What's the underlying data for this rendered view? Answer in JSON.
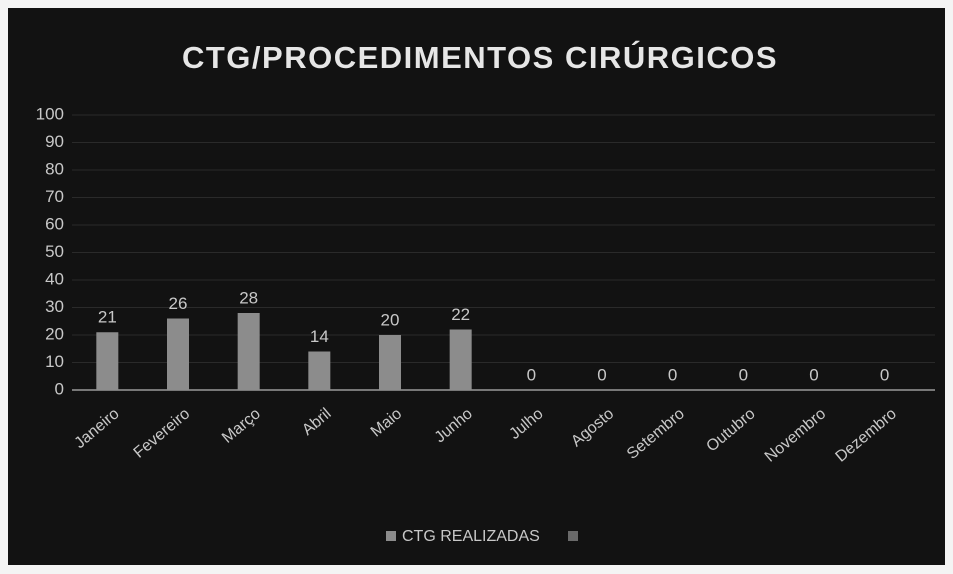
{
  "chart_data": {
    "type": "bar",
    "title": "CTG/PROCEDIMENTOS CIRÚRGICOS",
    "categories": [
      "Janeiro",
      "Fevereiro",
      "Março",
      "Abril",
      "Maio",
      "Junho",
      "Julho",
      "Agosto",
      "Setembro",
      "Outubro",
      "Novembro",
      "Dezembro"
    ],
    "series": [
      {
        "name": "CTG REALIZADAS",
        "color": "#8c8c8c",
        "values": [
          21,
          26,
          28,
          14,
          20,
          22,
          0,
          0,
          0,
          0,
          0,
          0
        ]
      }
    ],
    "ylim": [
      0,
      100
    ],
    "yticks": [
      0,
      10,
      20,
      30,
      40,
      50,
      60,
      70,
      80,
      90,
      100
    ],
    "grid": true,
    "data_labels": true,
    "legend": "bottom"
  }
}
